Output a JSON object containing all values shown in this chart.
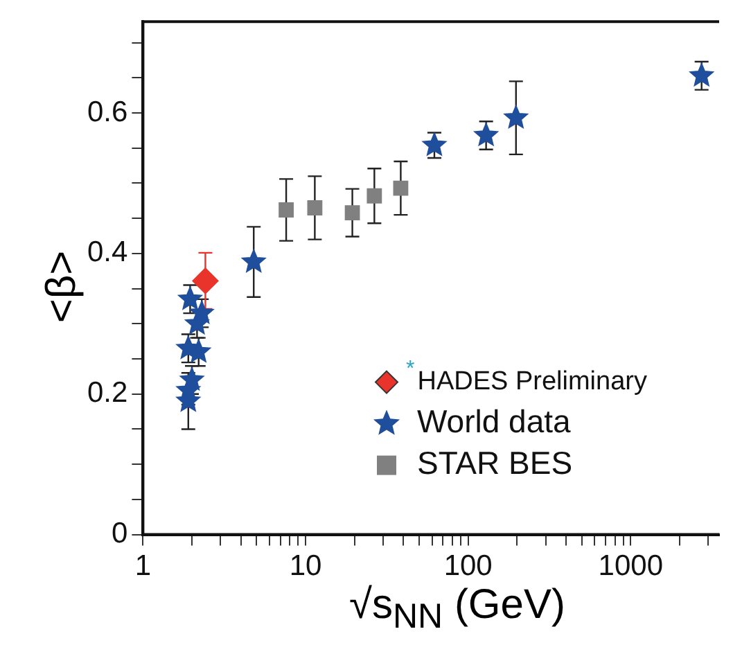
{
  "chart_data": {
    "type": "scatter",
    "xlabel": "√s$_{NN}$ (GeV)",
    "ylabel": "<β>",
    "log": "x",
    "xlim": [
      1,
      3500
    ],
    "ylim": [
      0,
      0.73
    ],
    "xticks": [
      1,
      {
        "value": 2,
        "label": null
      },
      {
        "value": 3,
        "label": null
      },
      {
        "value": 4,
        "label": null
      },
      {
        "value": 5,
        "label": null
      },
      {
        "value": 6,
        "label": null
      },
      {
        "value": 7,
        "label": null
      },
      {
        "value": 8,
        "label": null
      },
      {
        "value": 9,
        "label": null
      },
      10,
      {
        "value": 20,
        "label": null
      },
      {
        "value": 30,
        "label": null
      },
      {
        "value": 40,
        "label": null
      },
      {
        "value": 50,
        "label": null
      },
      {
        "value": 60,
        "label": null
      },
      {
        "value": 70,
        "label": null
      },
      {
        "value": 80,
        "label": null
      },
      {
        "value": 90,
        "label": null
      },
      100,
      {
        "value": 200,
        "label": null
      },
      {
        "value": 300,
        "label": null
      },
      {
        "value": 400,
        "label": null
      },
      {
        "value": 500,
        "label": null
      },
      {
        "value": 600,
        "label": null
      },
      {
        "value": 700,
        "label": null
      },
      {
        "value": 800,
        "label": null
      },
      {
        "value": 900,
        "label": null
      },
      1000,
      {
        "value": 2000,
        "label": null
      },
      {
        "value": 3000,
        "label": null
      }
    ],
    "yticks": [
      0,
      {
        "value": 0.05,
        "label": null
      },
      {
        "value": 0.1,
        "label": null
      },
      {
        "value": 0.15,
        "label": null
      },
      0.2,
      {
        "value": 0.25,
        "label": null
      },
      {
        "value": 0.3,
        "label": null
      },
      {
        "value": 0.35,
        "label": null
      },
      0.4,
      {
        "value": 0.45,
        "label": null
      },
      {
        "value": 0.5,
        "label": null
      },
      {
        "value": 0.55,
        "label": null
      },
      0.6,
      {
        "value": 0.65,
        "label": null
      },
      {
        "value": 0.7,
        "label": null
      }
    ],
    "grid": false,
    "legend": "bottom right",
    "series": [
      {
        "name": "World data",
        "color": "#1f4e9c",
        "marker": "star",
        "x": [
          1.9,
          1.9,
          2.0,
          1.9,
          2.2,
          2.15,
          2.3,
          1.95,
          4.8,
          62,
          129,
          197,
          2730
        ],
        "values": [
          0.19,
          0.205,
          0.22,
          0.265,
          0.26,
          0.3,
          0.315,
          0.335,
          0.388,
          0.554,
          0.568,
          0.593,
          0.653
        ],
        "errors": [
          0.04,
          0.02,
          0.02,
          0.02,
          0.02,
          0.02,
          0.02,
          0.02,
          0.05,
          0.018,
          0.02,
          0.052,
          0.02
        ]
      },
      {
        "name": "STAR BES",
        "color": "#808080",
        "marker": "square",
        "x": [
          7.6,
          11.4,
          19.4,
          26.5,
          38.5
        ],
        "values": [
          0.462,
          0.465,
          0.458,
          0.482,
          0.493
        ],
        "errors": [
          0.044,
          0.045,
          0.034,
          0.039,
          0.038
        ]
      },
      {
        "name": "$^{*}$HADES Preliminary",
        "color": "#e8342a",
        "marker": "diamond",
        "x": [
          2.42
        ],
        "values": [
          0.361
        ],
        "errors": [
          0.04
        ]
      }
    ]
  }
}
